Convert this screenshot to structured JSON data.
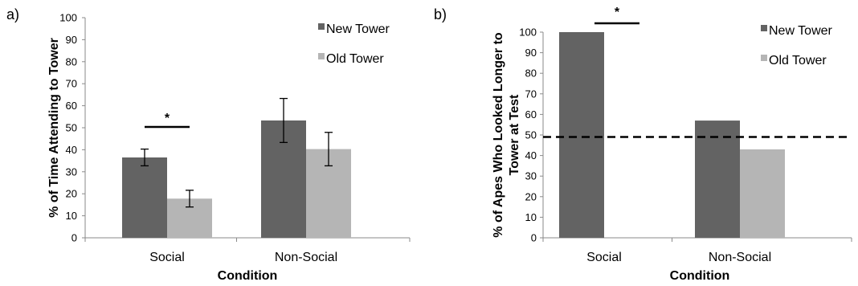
{
  "chart_data": [
    {
      "panel_label": "a)",
      "type": "bar",
      "categories": [
        "Social",
        "Non-Social"
      ],
      "series": [
        {
          "name": "New Tower",
          "values": [
            36.5,
            53.3
          ],
          "error": [
            3.8,
            10.0
          ]
        },
        {
          "name": "Old Tower",
          "values": [
            17.8,
            40.3
          ],
          "error": [
            3.8,
            7.6
          ]
        }
      ],
      "xlabel": "Condition",
      "ylabel": "% of Time Attending to Tower",
      "ylim": [
        0,
        100
      ],
      "yticks": [
        "0",
        "10",
        "20",
        "30",
        "40",
        "50",
        "60",
        "70",
        "80",
        "90",
        "100"
      ],
      "significance_marker": {
        "text": "*",
        "category": "Social"
      },
      "legend_position": "top-right",
      "colors": {
        "New Tower": "#636363",
        "Old Tower": "#b5b5b5"
      }
    },
    {
      "panel_label": "b)",
      "type": "bar",
      "categories": [
        "Social",
        "Non-Social"
      ],
      "series": [
        {
          "name": "New Tower",
          "values": [
            100,
            57
          ]
        },
        {
          "name": "Old Tower",
          "values": [
            0,
            43
          ]
        }
      ],
      "xlabel": "Condition",
      "ylabel_lines": [
        "% of Apes Who Looked Longer to",
        "Tower at Test"
      ],
      "ylim": [
        0,
        100
      ],
      "yticks": [
        "0",
        "10",
        "20",
        "30",
        "40",
        "50",
        "60",
        "70",
        "80",
        "90",
        "100"
      ],
      "reference_line": 49,
      "significance_marker": {
        "text": "*",
        "category": "Social"
      },
      "legend_position": "top-right",
      "colors": {
        "New Tower": "#636363",
        "Old Tower": "#b5b5b5"
      }
    }
  ]
}
